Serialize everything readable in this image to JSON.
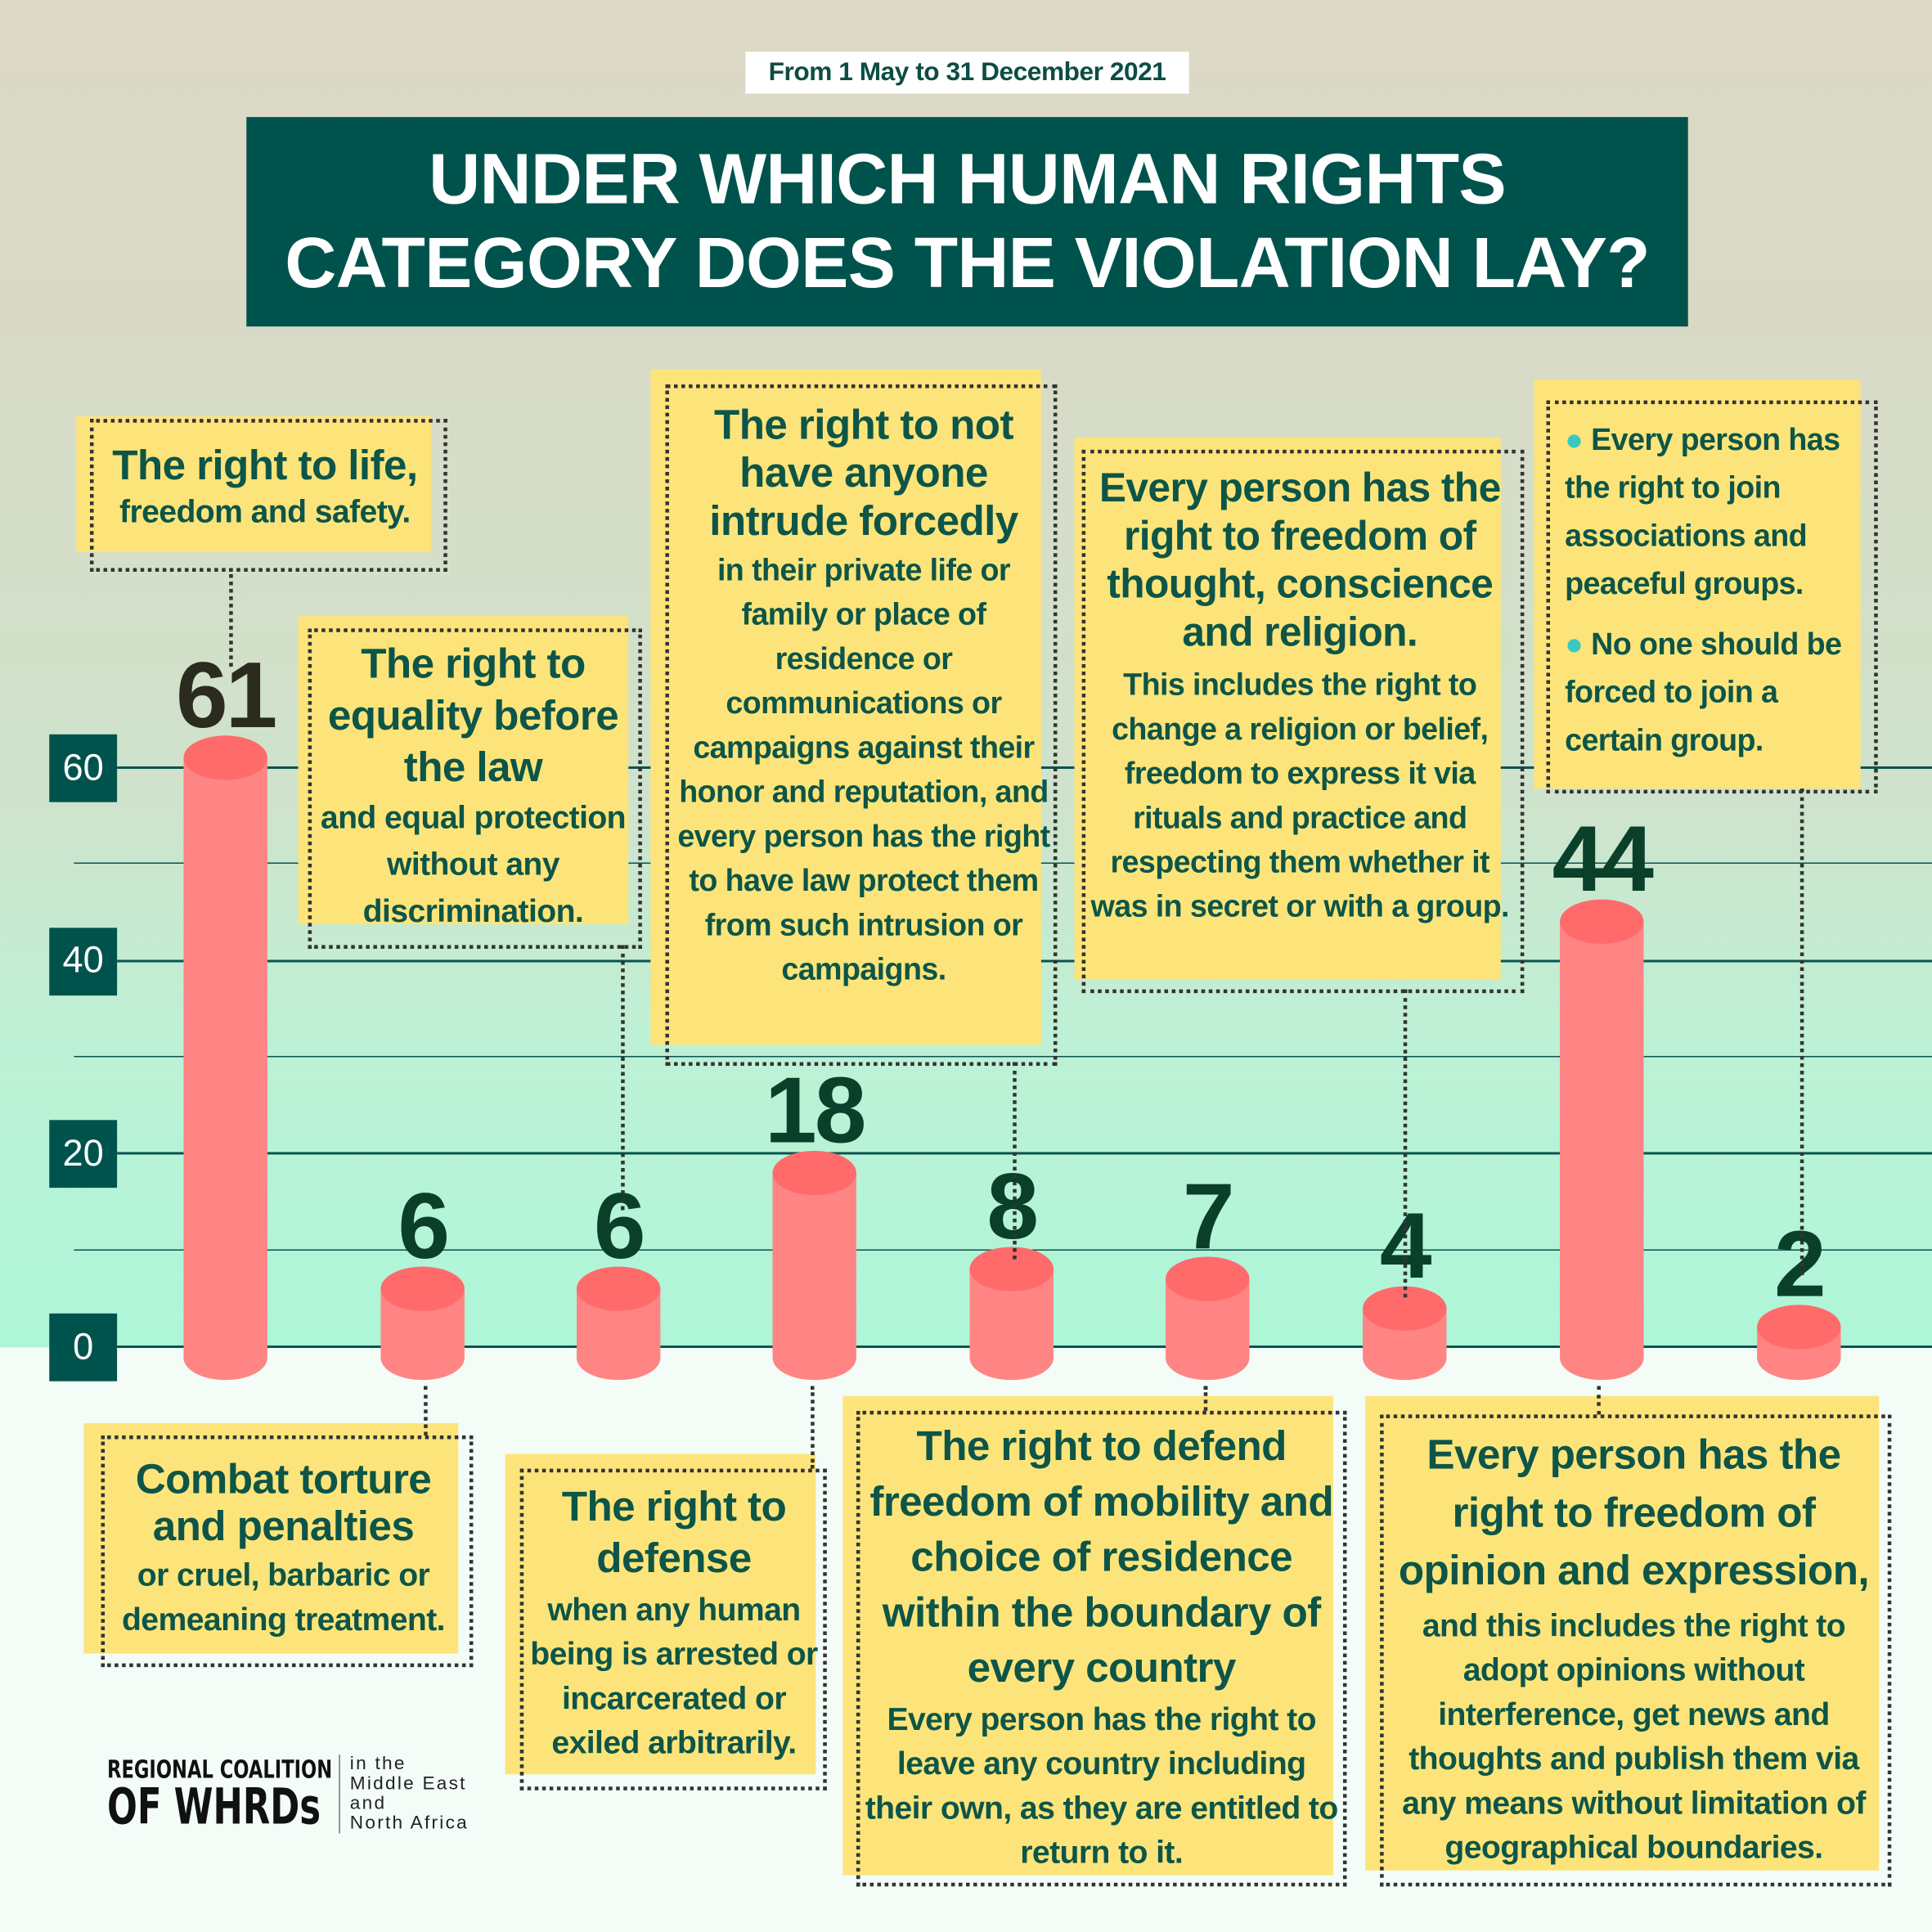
{
  "date_range": "From 1 May to 31 December 2021",
  "title": {
    "line1": "UNDER WHICH HUMAN RIGHTS",
    "line2": "CATEGORY DOES THE VIOLATION LAY?"
  },
  "chart_data": {
    "type": "bar",
    "title": "UNDER WHICH HUMAN RIGHTS CATEGORY DOES THE VIOLATION LAY?",
    "ylim": [
      0,
      60
    ],
    "yticks": [
      0,
      20,
      40,
      60
    ],
    "grid": true,
    "bar_color": "#ff8585",
    "bar_top_color": "#ff6b6b",
    "value_color": "#0a3f2a",
    "categories": [
      {
        "heading": "The right to life,",
        "body": "freedom and safety."
      },
      {
        "heading": "Combat torture and penalties",
        "body": "or cruel, barbaric or demeaning treatment."
      },
      {
        "heading": "The right to equality before the law",
        "body": "and equal protection without any discrimination."
      },
      {
        "heading": "The right to defense",
        "body": "when any human being is arrested or incarcerated or exiled arbitrarily."
      },
      {
        "heading": "The right to not have anyone intrude forcedly",
        "body": "in their private life or family or place of residence or communications or campaigns against their honor and reputation, and every person has the right to have law protect them from such intrusion or campaigns."
      },
      {
        "heading": "The right to defend freedom of mobility and choice of residence within the boundary of every country",
        "body": "Every person has the right to leave any country including their own, as they are entitled to return to it."
      },
      {
        "heading": "Every person has the right to freedom of thought, conscience and religion.",
        "body": "This includes the right to change a religion or belief, freedom to express it via rituals and practice and respecting them whether it was in secret or with a group."
      },
      {
        "heading": "Every person has the right to freedom of opinion and expression,",
        "body": "and this includes the right to adopt opinions without interference, get news and thoughts and publish them via any means without limitation of geographical boundaries."
      },
      {
        "heading": "",
        "bullets": [
          "Every person has the right to join associations and peaceful groups.",
          "No one should be forced to join a certain group."
        ]
      }
    ],
    "values": [
      61,
      6,
      6,
      18,
      8,
      7,
      4,
      44,
      2
    ],
    "value_labels": [
      "61",
      "6",
      "6",
      "18",
      "8",
      "7",
      "4",
      "44",
      "2"
    ]
  },
  "logo": {
    "line1": "REGIONAL COALITION",
    "line2": "OF WHRDs",
    "r1": "in the",
    "r2": "Middle East",
    "r3": "and",
    "r4": "North Africa"
  }
}
